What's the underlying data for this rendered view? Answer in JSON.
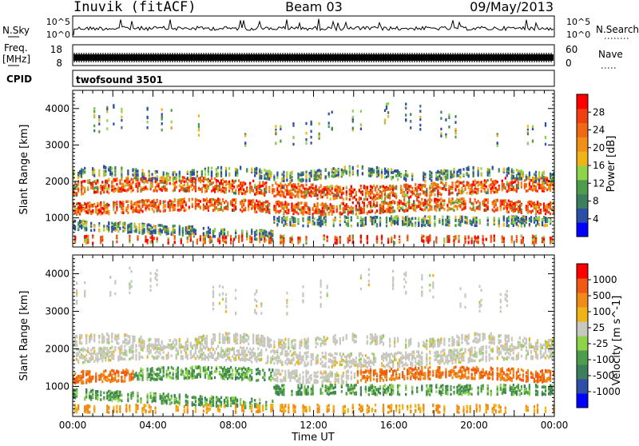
{
  "header": {
    "station": "Inuvik (fitACF)",
    "beam": "Beam 03",
    "date": "09/May/2013"
  },
  "strips": {
    "nsky_label": "N.Sky",
    "nsky_ticks": [
      "10^5",
      "10^0"
    ],
    "nsearch_label": "N.Search",
    "freq_label": "Freq.",
    "freq_unit": "[MHz]",
    "freq_ticks": [
      "18",
      "8"
    ],
    "nave_label": "Nave",
    "nave_ticks": [
      "60",
      "0"
    ],
    "cpid_label": "CPID",
    "cpid_value": "twofsound 3501"
  },
  "colors": {
    "power": [
      "#0000ff",
      "#2c4ea8",
      "#3d7f5c",
      "#4c9e4c",
      "#8fd34a",
      "#f0b419",
      "#f09018",
      "#f06a14",
      "#f04010",
      "#ff0000"
    ],
    "velocity": [
      "#0000ff",
      "#2c4ea8",
      "#3d7f5c",
      "#4c9e4c",
      "#8fd34a",
      "#c8c8c0",
      "#f0b419",
      "#f08a18",
      "#f05a14",
      "#ff0000"
    ]
  },
  "chart_data": [
    {
      "type": "heatmap",
      "panel": "power",
      "ylabel": "Slant Range [km]",
      "xlabel": "Time UT",
      "xticks": [
        "00:00",
        "04:00",
        "08:00",
        "12:00",
        "16:00",
        "20:00",
        "00:00"
      ],
      "yticks": [
        1000,
        2000,
        3000,
        4000
      ],
      "ylim": [
        200,
        4500
      ],
      "xlim_hours": [
        0,
        24
      ],
      "colorbar_label": "Power [dB]",
      "colorbar_ticks": [
        "28",
        "24",
        "20",
        "16",
        "12",
        "8",
        "4"
      ],
      "colorbar_range": [
        0,
        30
      ]
    },
    {
      "type": "heatmap",
      "panel": "velocity",
      "ylabel": "Slant Range [km]",
      "xlabel": "Time UT",
      "xticks": [
        "00:00",
        "04:00",
        "08:00",
        "12:00",
        "16:00",
        "20:00",
        "00:00"
      ],
      "yticks": [
        1000,
        2000,
        3000,
        4000
      ],
      "ylim": [
        200,
        4500
      ],
      "xlim_hours": [
        0,
        24
      ],
      "colorbar_label": "Velocity [m s^-1]",
      "colorbar_ticks": [
        "1000",
        "500",
        "100",
        "25",
        "-25",
        "-100",
        "-500",
        "-1000"
      ],
      "colorbar_range": [
        -1000,
        1000
      ]
    }
  ]
}
